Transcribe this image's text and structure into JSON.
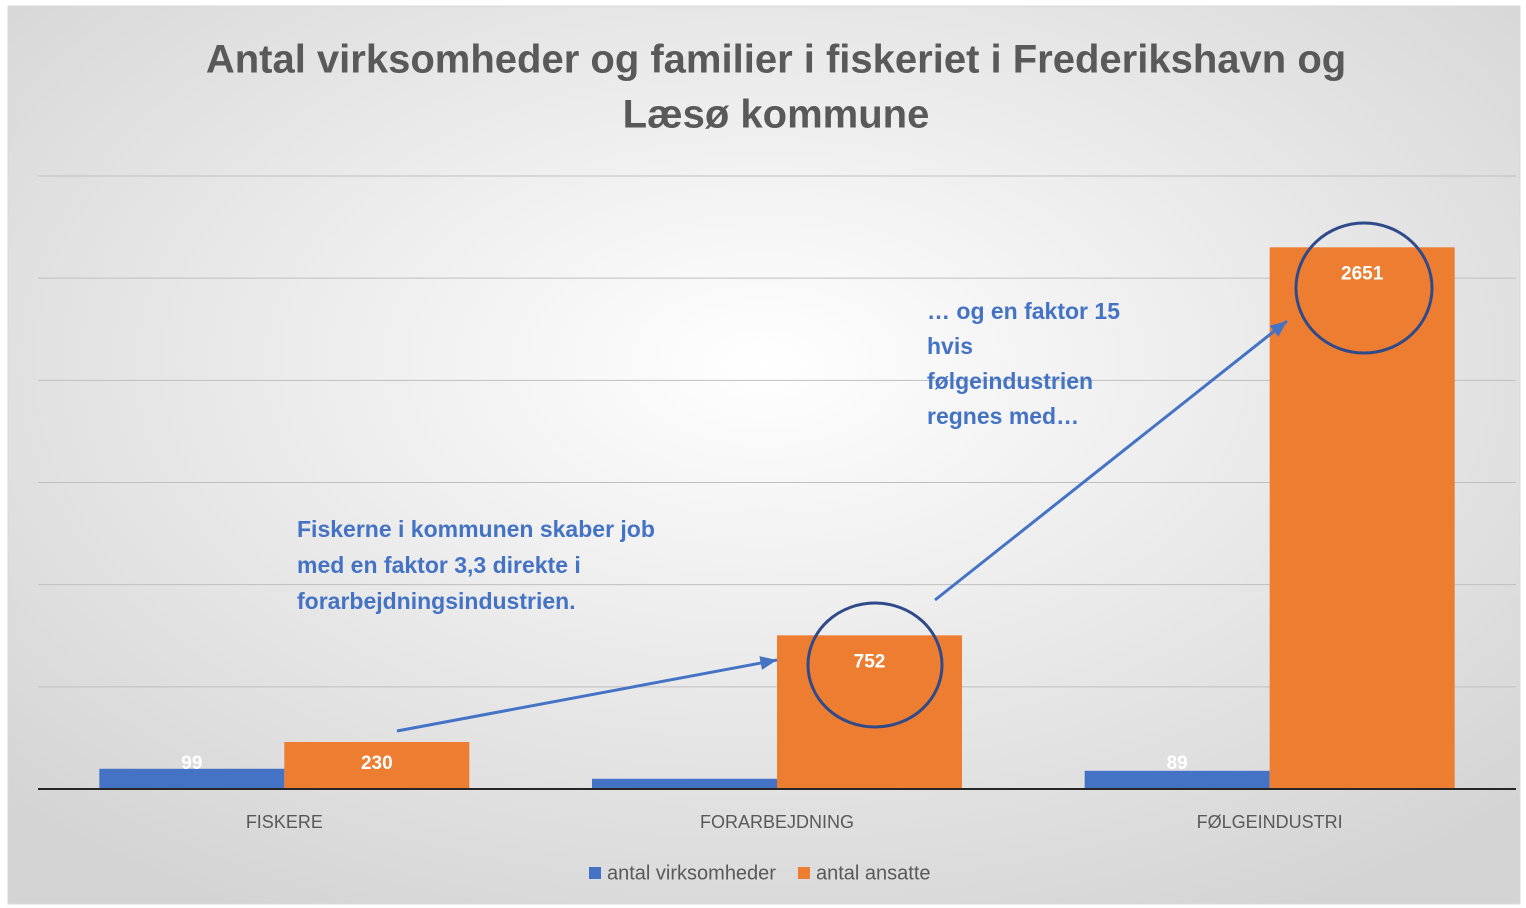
{
  "chart_data": {
    "type": "bar",
    "title": [
      "Antal virksomheder og familier i fiskeriet i Frederikshavn og",
      "Læsø kommune"
    ],
    "categories": [
      "FISKERE",
      "FORARBEJDNING",
      "FØLGEINDUSTRI"
    ],
    "series": [
      {
        "name": "antal virksomheder",
        "color": "#4472c4",
        "values": [
          99,
          50,
          89
        ],
        "value_labels": [
          "99",
          null,
          "89"
        ]
      },
      {
        "name": "antal ansatte",
        "color": "#ed7d31",
        "values": [
          230,
          752,
          2651
        ]
      }
    ],
    "ylim": [
      0,
      3000
    ],
    "yticks": [
      0,
      500,
      1000,
      1500,
      2000,
      2500,
      3000
    ],
    "grid": true,
    "ytick_labels": false,
    "legend": "bottom",
    "annotations": [
      [
        "Fiskerne i kommunen skaber job",
        "med en faktor 3,3 direkte i",
        "forarbejdningsindustrien."
      ],
      [
        "… og en faktor 15",
        "hvis",
        "følgeindustrien",
        "regnes med…"
      ]
    ]
  }
}
